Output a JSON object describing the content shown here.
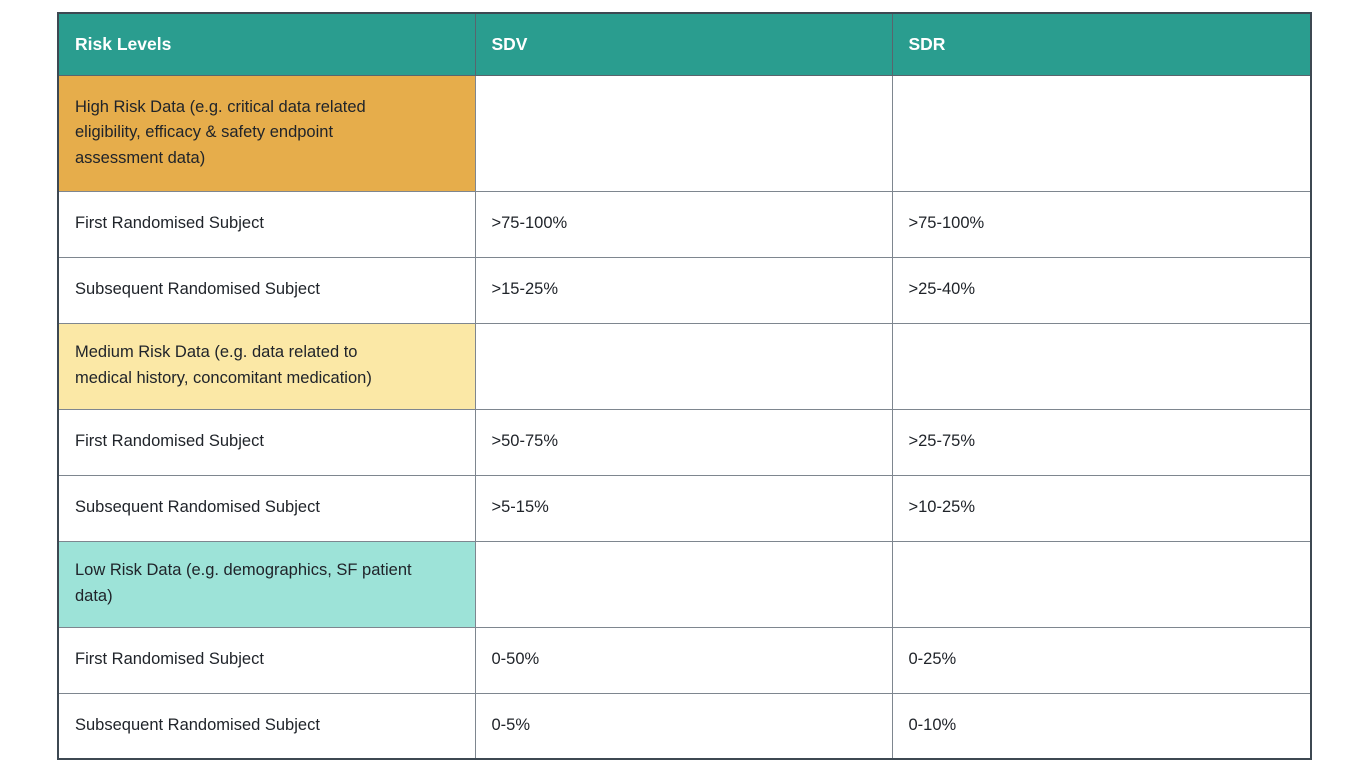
{
  "page": {
    "background": "#ffffff"
  },
  "table": {
    "header": {
      "bg_color": "#2a9d8f",
      "text_color": "#ffffff",
      "columns": [
        "Risk Levels",
        "SDV",
        "SDR"
      ]
    },
    "category_colors": {
      "high": "#e6ad4b",
      "medium": "#fbe8a6",
      "low": "#9de3d8"
    },
    "border_colors": {
      "outer": "#3d4852",
      "inner": "#7e868f"
    },
    "rows": [
      {
        "type": "category",
        "level": "high",
        "label": "High Risk Data (e.g. critical data related eligibility, efficacy & safety endpoint assessment data)",
        "label_bg": "#e6ad4b",
        "sdv": "",
        "sdr": ""
      },
      {
        "type": "data",
        "label": "First Randomised Subject",
        "sdv": ">75-100%",
        "sdr": ">75-100%"
      },
      {
        "type": "data",
        "label": "Subsequent Randomised Subject",
        "sdv": ">15-25%",
        "sdr": ">25-40%"
      },
      {
        "type": "category",
        "level": "medium",
        "label": "Medium Risk Data (e.g. data related to medical history, concomitant medication)",
        "label_bg": "#fbe8a6",
        "sdv": "",
        "sdr": ""
      },
      {
        "type": "data",
        "label": "First Randomised Subject",
        "sdv": ">50-75%",
        "sdr": ">25-75%"
      },
      {
        "type": "data",
        "label": "Subsequent Randomised Subject",
        "sdv": ">5-15%",
        "sdr": ">10-25%"
      },
      {
        "type": "category",
        "level": "low",
        "label": "Low Risk Data (e.g. demographics, SF patient data)",
        "label_bg": "#9de3d8",
        "sdv": "",
        "sdr": ""
      },
      {
        "type": "data",
        "label": "First Randomised Subject",
        "sdv": "0-50%",
        "sdr": "0-25%"
      },
      {
        "type": "data",
        "label": "Subsequent Randomised Subject",
        "sdv": "0-5%",
        "sdr": "0-10%"
      }
    ]
  }
}
